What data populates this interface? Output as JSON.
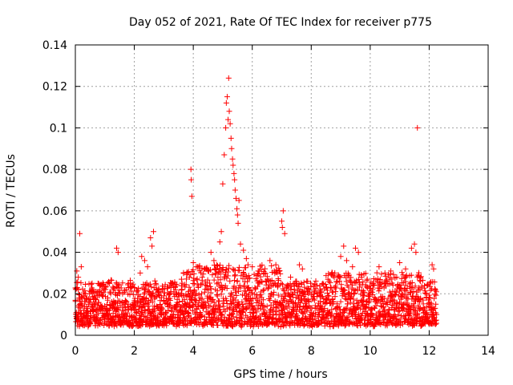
{
  "chart_data": {
    "type": "scatter",
    "title": "Day 052 of 2021, Rate Of TEC Index for receiver p775",
    "xlabel": "GPS time / hours",
    "ylabel": "ROTI / TECUs",
    "xlim": [
      0,
      14
    ],
    "ylim": [
      0,
      0.14
    ],
    "x_ticks": [
      0,
      2,
      4,
      6,
      8,
      10,
      12,
      14
    ],
    "x_tick_labels": [
      "0",
      "2",
      "4",
      "6",
      "8",
      "10",
      "12",
      "14"
    ],
    "y_ticks": [
      0,
      0.02,
      0.04,
      0.06,
      0.08,
      0.1,
      0.12,
      0.14
    ],
    "y_tick_labels": [
      "0",
      "0.02",
      "0.04",
      "0.06",
      "0.08",
      "0.1",
      "0.12",
      "0.14"
    ],
    "grid": true,
    "marker": "plus",
    "color": "#ff0000",
    "series": [
      {
        "name": "ROTI",
        "points": [
          [
            0.05,
            0.031
          ],
          [
            0.1,
            0.028
          ],
          [
            0.15,
            0.049
          ],
          [
            0.2,
            0.033
          ],
          [
            0.1,
            0.022
          ],
          [
            0.3,
            0.019
          ],
          [
            0.5,
            0.016
          ],
          [
            0.7,
            0.021
          ],
          [
            0.9,
            0.024
          ],
          [
            1.1,
            0.018
          ],
          [
            1.3,
            0.015
          ],
          [
            1.4,
            0.042
          ],
          [
            1.45,
            0.04
          ],
          [
            1.6,
            0.02
          ],
          [
            1.8,
            0.025
          ],
          [
            2.0,
            0.023
          ],
          [
            2.2,
            0.03
          ],
          [
            2.25,
            0.038
          ],
          [
            2.35,
            0.036
          ],
          [
            2.45,
            0.033
          ],
          [
            2.55,
            0.047
          ],
          [
            2.6,
            0.043
          ],
          [
            2.65,
            0.05
          ],
          [
            2.8,
            0.021
          ],
          [
            3.0,
            0.019
          ],
          [
            3.2,
            0.024
          ],
          [
            3.4,
            0.022
          ],
          [
            3.6,
            0.027
          ],
          [
            3.8,
            0.03
          ],
          [
            3.92,
            0.08
          ],
          [
            3.93,
            0.075
          ],
          [
            3.95,
            0.067
          ],
          [
            4.0,
            0.035
          ],
          [
            4.1,
            0.033
          ],
          [
            4.3,
            0.028
          ],
          [
            4.5,
            0.031
          ],
          [
            4.6,
            0.04
          ],
          [
            4.7,
            0.036
          ],
          [
            4.8,
            0.034
          ],
          [
            4.9,
            0.045
          ],
          [
            4.95,
            0.05
          ],
          [
            5.0,
            0.073
          ],
          [
            5.05,
            0.087
          ],
          [
            5.1,
            0.1
          ],
          [
            5.12,
            0.112
          ],
          [
            5.15,
            0.115
          ],
          [
            5.18,
            0.104
          ],
          [
            5.2,
            0.124
          ],
          [
            5.22,
            0.108
          ],
          [
            5.25,
            0.102
          ],
          [
            5.28,
            0.095
          ],
          [
            5.3,
            0.09
          ],
          [
            5.33,
            0.085
          ],
          [
            5.35,
            0.082
          ],
          [
            5.38,
            0.078
          ],
          [
            5.4,
            0.075
          ],
          [
            5.42,
            0.07
          ],
          [
            5.45,
            0.066
          ],
          [
            5.48,
            0.061
          ],
          [
            5.5,
            0.058
          ],
          [
            5.52,
            0.054
          ],
          [
            5.55,
            0.065
          ],
          [
            5.6,
            0.044
          ],
          [
            5.7,
            0.041
          ],
          [
            5.8,
            0.037
          ],
          [
            6.0,
            0.033
          ],
          [
            6.2,
            0.031
          ],
          [
            6.4,
            0.03
          ],
          [
            6.6,
            0.036
          ],
          [
            6.8,
            0.034
          ],
          [
            7.0,
            0.055
          ],
          [
            7.02,
            0.052
          ],
          [
            7.05,
            0.06
          ],
          [
            7.1,
            0.049
          ],
          [
            7.3,
            0.028
          ],
          [
            7.5,
            0.026
          ],
          [
            7.6,
            0.034
          ],
          [
            7.7,
            0.032
          ],
          [
            7.9,
            0.022
          ],
          [
            8.1,
            0.021
          ],
          [
            8.3,
            0.019
          ],
          [
            8.5,
            0.023
          ],
          [
            8.8,
            0.03
          ],
          [
            9.0,
            0.038
          ],
          [
            9.1,
            0.043
          ],
          [
            9.2,
            0.036
          ],
          [
            9.4,
            0.033
          ],
          [
            9.5,
            0.042
          ],
          [
            9.6,
            0.04
          ],
          [
            9.7,
            0.029
          ],
          [
            9.9,
            0.027
          ],
          [
            10.1,
            0.025
          ],
          [
            10.3,
            0.033
          ],
          [
            10.5,
            0.03
          ],
          [
            10.7,
            0.031
          ],
          [
            10.9,
            0.028
          ],
          [
            11.0,
            0.035
          ],
          [
            11.2,
            0.032
          ],
          [
            11.4,
            0.042
          ],
          [
            11.5,
            0.044
          ],
          [
            11.55,
            0.04
          ],
          [
            11.6,
            0.1
          ],
          [
            11.7,
            0.026
          ],
          [
            11.9,
            0.02
          ],
          [
            12.0,
            0.018
          ],
          [
            12.1,
            0.034
          ],
          [
            12.15,
            0.032
          ],
          [
            12.2,
            0.013
          ],
          [
            12.25,
            0.01
          ]
        ]
      }
    ],
    "baseline_band": {
      "x_start": 0,
      "x_end": 12.25,
      "min_typical": 0.004,
      "max_typical": 0.025
    }
  }
}
